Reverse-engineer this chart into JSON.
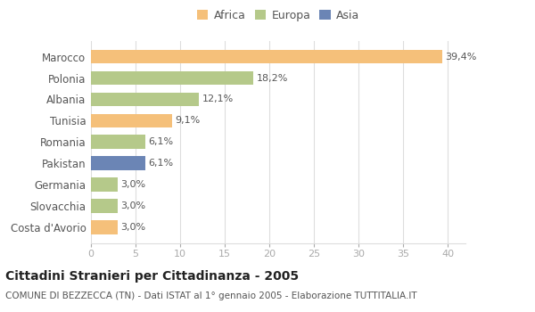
{
  "categories": [
    "Costa d'Avorio",
    "Slovacchia",
    "Germania",
    "Pakistan",
    "Romania",
    "Tunisia",
    "Albania",
    "Polonia",
    "Marocco"
  ],
  "values": [
    3.0,
    3.0,
    3.0,
    6.1,
    6.1,
    9.1,
    12.1,
    18.2,
    39.4
  ],
  "labels": [
    "3,0%",
    "3,0%",
    "3,0%",
    "6,1%",
    "6,1%",
    "9,1%",
    "12,1%",
    "18,2%",
    "39,4%"
  ],
  "colors": [
    "#f5c07a",
    "#b5c98a",
    "#b5c98a",
    "#6b85b5",
    "#b5c98a",
    "#f5c07a",
    "#b5c98a",
    "#b5c98a",
    "#f5c07a"
  ],
  "legend": [
    {
      "label": "Africa",
      "color": "#f5c07a"
    },
    {
      "label": "Europa",
      "color": "#b5c98a"
    },
    {
      "label": "Asia",
      "color": "#6b85b5"
    }
  ],
  "xlim": [
    0,
    42
  ],
  "xticks": [
    0,
    5,
    10,
    15,
    20,
    25,
    30,
    35,
    40
  ],
  "title": "Cittadini Stranieri per Cittadinanza - 2005",
  "subtitle": "COMUNE DI BEZZECCA (TN) - Dati ISTAT al 1° gennaio 2005 - Elaborazione TUTTITALIA.IT",
  "background_color": "#ffffff",
  "plot_bg_color": "#ffffff",
  "bar_height": 0.65,
  "label_fontsize": 8.0,
  "tick_fontsize": 8.0,
  "ytick_fontsize": 8.5,
  "title_fontsize": 10.0,
  "subtitle_fontsize": 7.5,
  "legend_fontsize": 9.0,
  "grid_color": "#dddddd",
  "text_color": "#555555",
  "xtick_color": "#aaaaaa"
}
